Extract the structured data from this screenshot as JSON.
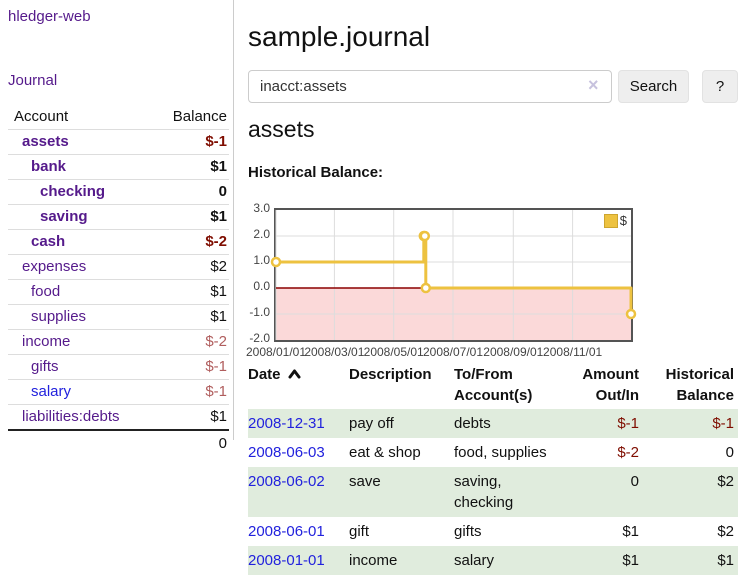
{
  "app": {
    "title": "hledger-web"
  },
  "colors": {
    "link_visited_purple": "#551a8b",
    "link_blue": "#2222dd",
    "negative_strong": "#7f0d00",
    "negative_soft": "#b05d5d",
    "row_stripe_green": "#e0ecdd",
    "series_yellow": "#edc240"
  },
  "sidebar": {
    "nav": {
      "journal_label": "Journal"
    },
    "accounts_table": {
      "col_account": "Account",
      "col_balance": "Balance",
      "rows": [
        {
          "name": "assets",
          "balance": "$-1",
          "depth": 0,
          "bold": true,
          "neg": "strong"
        },
        {
          "name": "bank",
          "balance": "$1",
          "depth": 1,
          "bold": true,
          "neg": "none"
        },
        {
          "name": "checking",
          "balance": "0",
          "depth": 2,
          "bold": true,
          "neg": "none"
        },
        {
          "name": "saving",
          "balance": "$1",
          "depth": 2,
          "bold": true,
          "neg": "none"
        },
        {
          "name": "cash",
          "balance": "$-2",
          "depth": 1,
          "bold": true,
          "neg": "strong"
        },
        {
          "name": "expenses",
          "balance": "$2",
          "depth": 0,
          "bold": false,
          "neg": "none"
        },
        {
          "name": "food",
          "balance": "$1",
          "depth": 1,
          "bold": false,
          "neg": "none"
        },
        {
          "name": "supplies",
          "balance": "$1",
          "depth": 1,
          "bold": false,
          "neg": "none"
        },
        {
          "name": "income",
          "balance": "$-2",
          "depth": 0,
          "bold": false,
          "neg": "soft"
        },
        {
          "name": "gifts",
          "balance": "$-1",
          "depth": 1,
          "bold": false,
          "neg": "soft"
        },
        {
          "name": "salary",
          "balance": "$-1",
          "depth": 1,
          "bold": false,
          "neg": "soft",
          "link_color": "blue"
        },
        {
          "name": "liabilities:debts",
          "balance": "$1",
          "depth": 0,
          "bold": false,
          "neg": "none"
        }
      ],
      "total": "0"
    }
  },
  "header": {
    "title": "sample.journal"
  },
  "search": {
    "value": "inacct:assets",
    "clear_icon": "×",
    "button_label": "Search",
    "help_label": "?"
  },
  "account_page": {
    "heading": "assets",
    "chart_label": "Historical Balance:"
  },
  "chart_data": {
    "type": "line",
    "title": "Historical Balance:",
    "x_range": [
      "2008-01-01",
      "2008-12-31"
    ],
    "ylim": [
      -2,
      3
    ],
    "y_ticks": [
      "3.0",
      "2.0",
      "1.0",
      "0.0",
      "-1.0",
      "-2.0"
    ],
    "x_ticks": [
      {
        "label": "2008/01/01",
        "date": "2008-01-01"
      },
      {
        "label": "2008/03/01",
        "date": "2008-03-01"
      },
      {
        "label": "2008/05/01",
        "date": "2008-05-01"
      },
      {
        "label": "2008/07/01",
        "date": "2008-07-01"
      },
      {
        "label": "2008/09/01",
        "date": "2008-09-01"
      },
      {
        "label": "2008/11/01",
        "date": "2008-11-01"
      }
    ],
    "series": [
      {
        "name": "$",
        "color": "#edc240",
        "step": true,
        "points": [
          {
            "date": "2008-01-01",
            "value": 1
          },
          {
            "date": "2008-06-01",
            "value": 2
          },
          {
            "date": "2008-06-02",
            "value": 2
          },
          {
            "date": "2008-06-03",
            "value": 0
          },
          {
            "date": "2008-12-31",
            "value": -1
          }
        ]
      }
    ],
    "legend": {
      "label": "$",
      "position": "top-right"
    },
    "grid": true,
    "zero_line_color": "#8b0000",
    "negative_region_color": "#fbd9d9"
  },
  "transactions": {
    "columns": [
      {
        "line1": "Date",
        "line2": "",
        "align": "left",
        "sort": "asc"
      },
      {
        "line1": "Description",
        "line2": "",
        "align": "left"
      },
      {
        "line1": "To/From",
        "line2": "Account(s)",
        "align": "left"
      },
      {
        "line1": "Amount",
        "line2": "Out/In",
        "align": "right"
      },
      {
        "line1": "Historical",
        "line2": "Balance",
        "align": "right"
      }
    ],
    "rows": [
      {
        "date": "2008-12-31",
        "description": "pay off",
        "accounts": "debts",
        "amount": "$-1",
        "balance": "$-1",
        "amount_neg": true,
        "balance_neg": true
      },
      {
        "date": "2008-06-03",
        "description": "eat & shop",
        "accounts": "food, supplies",
        "amount": "$-2",
        "balance": "0",
        "amount_neg": true,
        "balance_neg": false
      },
      {
        "date": "2008-06-02",
        "description": "save",
        "accounts": "saving, checking",
        "amount": "0",
        "balance": "$2",
        "amount_neg": false,
        "balance_neg": false
      },
      {
        "date": "2008-06-01",
        "description": "gift",
        "accounts": "gifts",
        "amount": "$1",
        "balance": "$2",
        "amount_neg": false,
        "balance_neg": false
      },
      {
        "date": "2008-01-01",
        "description": "income",
        "accounts": "salary",
        "amount": "$1",
        "balance": "$1",
        "amount_neg": false,
        "balance_neg": false
      }
    ]
  }
}
